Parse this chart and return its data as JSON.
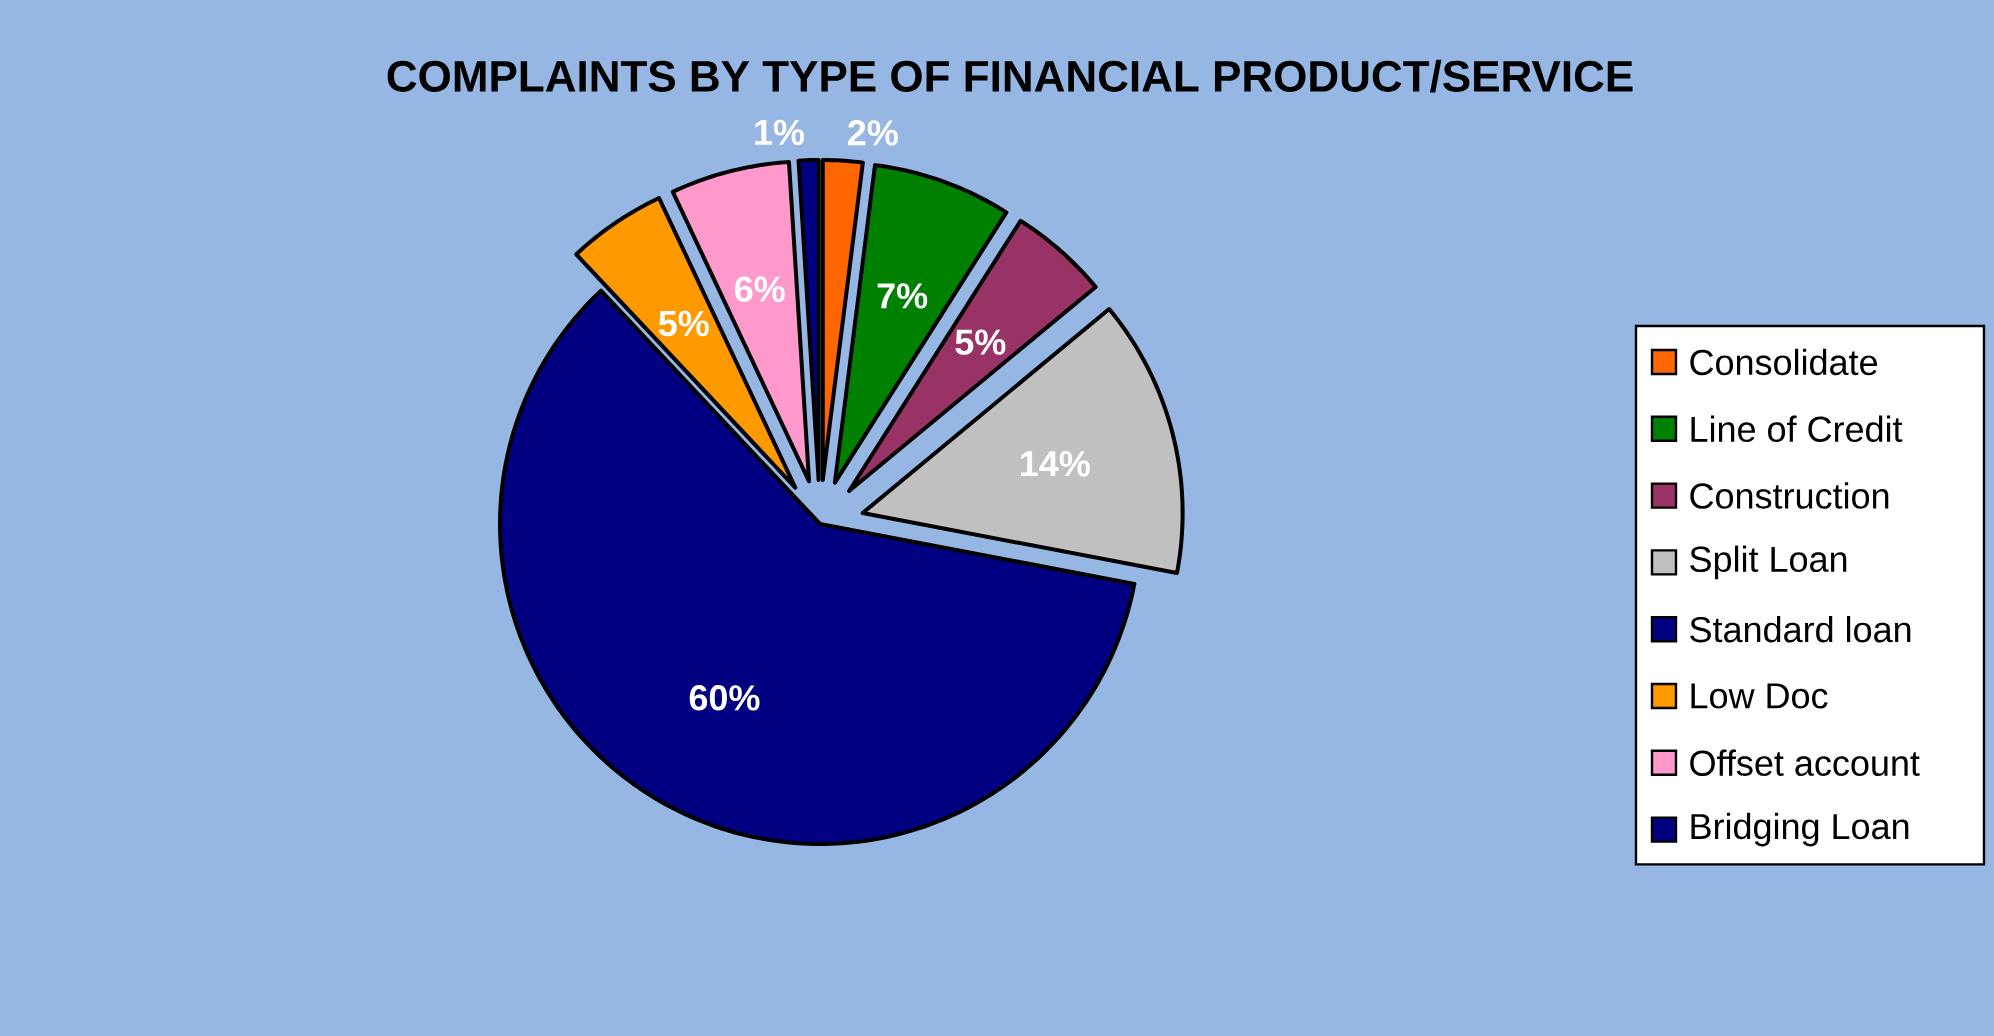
{
  "chart_data": {
    "type": "pie",
    "title": "COMPLAINTS BY TYPE OF FINANCIAL PRODUCT/SERVICE",
    "categories": [
      "Consolidate",
      "Line of Credit",
      "Construction",
      "Split Loan",
      "Standard loan",
      "Low Doc",
      "Offset account",
      "Bridging Loan"
    ],
    "values": [
      2,
      7,
      5,
      14,
      60,
      5,
      6,
      1
    ],
    "colors": [
      "#ff6600",
      "#008000",
      "#993366",
      "#c0c0c0",
      "#000080",
      "#ff9900",
      "#ff99cc",
      "#000080"
    ],
    "value_labels": [
      "2%",
      "7%",
      "5%",
      "14%",
      "60%",
      "5%",
      "6%",
      "1%"
    ],
    "legend": "right"
  }
}
